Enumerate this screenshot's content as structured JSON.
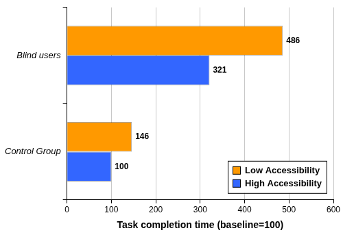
{
  "chart_data": {
    "type": "bar",
    "orientation": "horizontal",
    "categories": [
      "Blind users",
      "Control Group"
    ],
    "series": [
      {
        "name": "Low Accessibility",
        "color": "#ff9900",
        "values": [
          486,
          146
        ]
      },
      {
        "name": "High Accessibility",
        "color": "#3366ff",
        "values": [
          321,
          100
        ]
      }
    ],
    "x_label": "Task completion time (baseline=100)",
    "xlim": [
      0,
      600
    ],
    "xticks": [
      0,
      100,
      200,
      300,
      400,
      500,
      600
    ],
    "grid": true,
    "legend": "lower right",
    "data_labels": true
  }
}
